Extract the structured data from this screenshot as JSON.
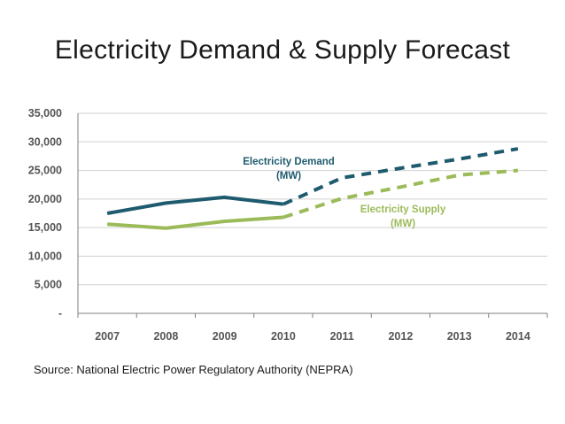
{
  "slide": {
    "title": "Electricity Demand & Supply Forecast",
    "source": "Source: National Electric Power Regulatory Authority (NEPRA)"
  },
  "chart_data": {
    "type": "line",
    "title": "Electricity Demand & Supply Forecast",
    "xlabel": "",
    "ylabel": "",
    "categories": [
      "2007",
      "2008",
      "2009",
      "2010",
      "2011",
      "2012",
      "2013",
      "2014"
    ],
    "y_tick_values": [
      0,
      5000,
      10000,
      15000,
      20000,
      25000,
      30000,
      35000
    ],
    "y_tick_labels": [
      "-",
      "5,000",
      "10,000",
      "15,000",
      "20,000",
      "25,000",
      "30,000",
      "35,000"
    ],
    "ylim": [
      0,
      35000
    ],
    "grid": true,
    "series": [
      {
        "name": "Electricity Demand (MW)",
        "label_lines": [
          "Electricity Demand",
          "(MW)"
        ],
        "color": "#1e5b6e",
        "values": [
          17500,
          19300,
          20300,
          19100,
          23700,
          25400,
          27000,
          28800
        ],
        "actual_through_index": 3
      },
      {
        "name": "Electricity Supply (MW)",
        "label_lines": [
          "Electricity Supply",
          "(MW)"
        ],
        "color": "#9bbb59",
        "values": [
          15600,
          14900,
          16100,
          16800,
          20100,
          22100,
          24200,
          25000
        ],
        "actual_through_index": 3
      }
    ]
  }
}
